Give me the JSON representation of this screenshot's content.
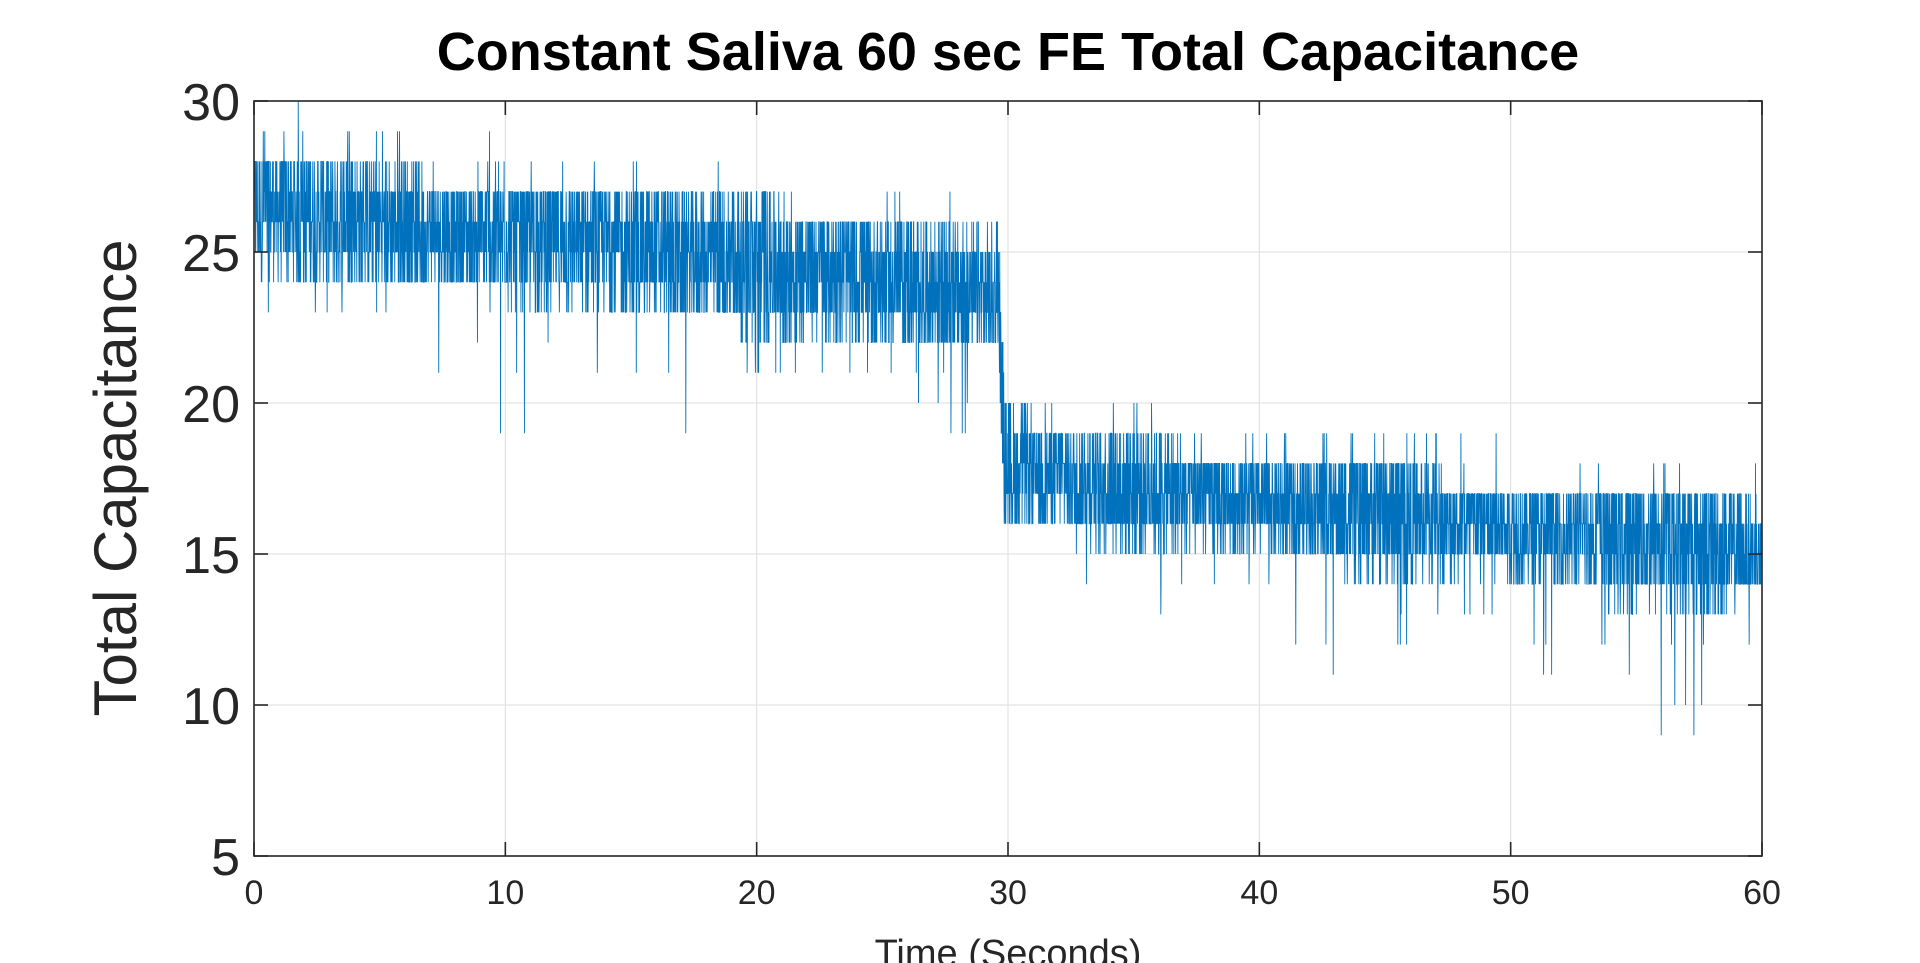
{
  "chart_data": {
    "type": "line",
    "title": "Constant Saliva 60 sec FE Total Capacitance",
    "xlabel": "Time (Seconds)",
    "ylabel": "Total Capacitance",
    "xlim": [
      0,
      60
    ],
    "ylim": [
      5,
      30
    ],
    "xticks": [
      0,
      10,
      20,
      30,
      40,
      50,
      60
    ],
    "yticks": [
      5,
      10,
      15,
      20,
      25,
      30
    ],
    "grid": true,
    "legend": "none",
    "series": [
      {
        "color": "#0072BD",
        "x": [
          0,
          2,
          4,
          6,
          8,
          10,
          12,
          14,
          16,
          18,
          20,
          22,
          24,
          26,
          28,
          29.6,
          29.9,
          32,
          34,
          36,
          38,
          40,
          42,
          44,
          46,
          48,
          50,
          52,
          54,
          56,
          58,
          60
        ],
        "center": [
          26.5,
          26.2,
          26.0,
          25.8,
          25.6,
          25.4,
          25.3,
          25.2,
          25.0,
          24.8,
          24.6,
          24.4,
          24.2,
          24.0,
          23.6,
          23.4,
          17.8,
          17.6,
          17.4,
          17.1,
          16.9,
          16.7,
          16.5,
          16.4,
          16.2,
          16.0,
          15.8,
          15.6,
          15.5,
          15.4,
          15.2,
          15.0
        ],
        "band_low": [
          24,
          24,
          24,
          24,
          24,
          23,
          23,
          23,
          23,
          23,
          22,
          22,
          22,
          22,
          22,
          22,
          16,
          16,
          15,
          15,
          15,
          15,
          15,
          14,
          14,
          14,
          14,
          14,
          13,
          13,
          13,
          14
        ],
        "band_high": [
          28,
          28,
          28,
          28,
          27,
          27,
          27,
          27,
          27,
          27,
          27,
          26,
          26,
          26,
          26,
          26,
          20,
          19,
          19,
          19,
          18,
          18,
          18,
          18,
          18,
          17,
          17,
          17,
          17,
          17,
          17,
          17
        ],
        "peak_max": [
          30,
          30,
          30,
          29,
          29,
          29,
          28,
          28,
          28,
          28,
          28,
          27,
          27,
          27,
          27,
          26,
          21,
          20,
          20,
          20,
          19,
          19,
          19,
          19,
          19,
          19,
          19,
          18,
          18,
          18,
          18,
          18
        ],
        "peak_min": [
          23,
          22,
          22,
          21,
          21,
          18,
          20,
          20,
          17,
          17,
          20,
          21,
          20,
          20,
          18,
          19,
          15,
          14,
          14,
          11,
          13,
          13,
          10,
          12,
          12,
          12,
          11,
          9,
          11,
          9,
          9,
          9
        ]
      }
    ]
  }
}
